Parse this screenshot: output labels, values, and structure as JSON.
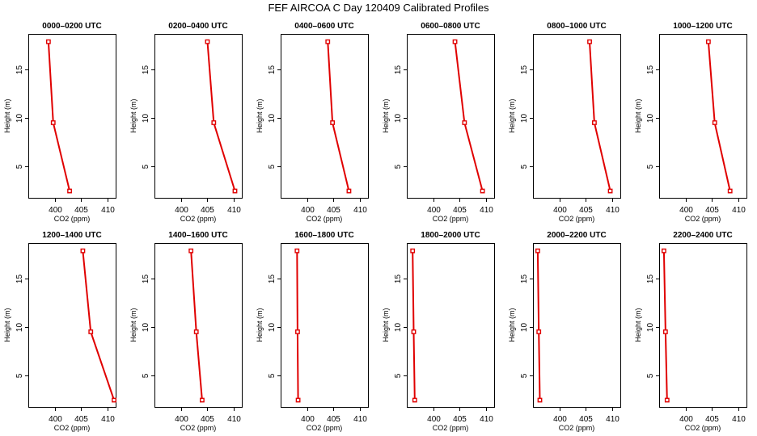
{
  "figure": {
    "title": "FEF AIRCOA C  Day 120409  Calibrated Profiles"
  },
  "chart_data": [
    {
      "type": "line",
      "title": "0000–0200 UTC",
      "xlabel": "CO2 (ppm)",
      "ylabel": "Height (m)",
      "xlim": [
        395,
        411.5
      ],
      "ylim": [
        1.8,
        18.6
      ],
      "xticks": [
        400,
        405,
        410
      ],
      "yticks": [
        5,
        10,
        15
      ],
      "x": [
        398.8,
        399.7,
        402.8
      ],
      "y": [
        17.8,
        9.5,
        2.5
      ]
    },
    {
      "type": "line",
      "title": "0200–0400 UTC",
      "xlabel": "CO2 (ppm)",
      "ylabel": "Height (m)",
      "xlim": [
        395,
        411.5
      ],
      "ylim": [
        1.8,
        18.6
      ],
      "xticks": [
        400,
        405,
        410
      ],
      "yticks": [
        5,
        10,
        15
      ],
      "x": [
        405.0,
        406.2,
        410.2
      ],
      "y": [
        17.8,
        9.5,
        2.5
      ]
    },
    {
      "type": "line",
      "title": "0400–0600 UTC",
      "xlabel": "CO2 (ppm)",
      "ylabel": "Height (m)",
      "xlim": [
        395,
        411.5
      ],
      "ylim": [
        1.8,
        18.6
      ],
      "xticks": [
        400,
        405,
        410
      ],
      "yticks": [
        5,
        10,
        15
      ],
      "x": [
        403.9,
        404.8,
        407.9
      ],
      "y": [
        17.8,
        9.5,
        2.5
      ]
    },
    {
      "type": "line",
      "title": "0600–0800 UTC",
      "xlabel": "CO2 (ppm)",
      "ylabel": "Height (m)",
      "xlim": [
        395,
        411.5
      ],
      "ylim": [
        1.8,
        18.6
      ],
      "xticks": [
        400,
        405,
        410
      ],
      "yticks": [
        5,
        10,
        15
      ],
      "x": [
        404.1,
        405.9,
        409.3
      ],
      "y": [
        17.8,
        9.5,
        2.5
      ]
    },
    {
      "type": "line",
      "title": "0800–1000 UTC",
      "xlabel": "CO2 (ppm)",
      "ylabel": "Height (m)",
      "xlim": [
        395,
        411.5
      ],
      "ylim": [
        1.8,
        18.6
      ],
      "xticks": [
        400,
        405,
        410
      ],
      "yticks": [
        5,
        10,
        15
      ],
      "x": [
        405.7,
        406.6,
        409.6
      ],
      "y": [
        17.8,
        9.5,
        2.5
      ]
    },
    {
      "type": "line",
      "title": "1000–1200 UTC",
      "xlabel": "CO2 (ppm)",
      "ylabel": "Height (m)",
      "xlim": [
        395,
        411.5
      ],
      "ylim": [
        1.8,
        18.6
      ],
      "xticks": [
        400,
        405,
        410
      ],
      "yticks": [
        5,
        10,
        15
      ],
      "x": [
        404.3,
        405.5,
        408.4
      ],
      "y": [
        17.8,
        9.5,
        2.5
      ]
    },
    {
      "type": "line",
      "title": "1200–1400 UTC",
      "xlabel": "CO2 (ppm)",
      "ylabel": "Height (m)",
      "xlim": [
        395,
        411.5
      ],
      "ylim": [
        1.8,
        18.6
      ],
      "xticks": [
        400,
        405,
        410
      ],
      "yticks": [
        5,
        10,
        15
      ],
      "x": [
        405.3,
        406.8,
        411.2
      ],
      "y": [
        17.8,
        9.5,
        2.5
      ]
    },
    {
      "type": "line",
      "title": "1400–1600 UTC",
      "xlabel": "CO2 (ppm)",
      "ylabel": "Height (m)",
      "xlim": [
        395,
        411.5
      ],
      "ylim": [
        1.8,
        18.6
      ],
      "xticks": [
        400,
        405,
        410
      ],
      "yticks": [
        5,
        10,
        15
      ],
      "x": [
        401.9,
        402.9,
        404.0
      ],
      "y": [
        17.8,
        9.5,
        2.5
      ]
    },
    {
      "type": "line",
      "title": "1600–1800 UTC",
      "xlabel": "CO2 (ppm)",
      "ylabel": "Height (m)",
      "xlim": [
        395,
        411.5
      ],
      "ylim": [
        1.8,
        18.6
      ],
      "xticks": [
        400,
        405,
        410
      ],
      "yticks": [
        5,
        10,
        15
      ],
      "x": [
        398.1,
        398.2,
        398.3
      ],
      "y": [
        17.8,
        9.5,
        2.5
      ]
    },
    {
      "type": "line",
      "title": "1800–2000 UTC",
      "xlabel": "CO2 (ppm)",
      "ylabel": "Height (m)",
      "xlim": [
        395,
        411.5
      ],
      "ylim": [
        1.8,
        18.6
      ],
      "xticks": [
        400,
        405,
        410
      ],
      "yticks": [
        5,
        10,
        15
      ],
      "x": [
        396.1,
        396.3,
        396.5
      ],
      "y": [
        17.8,
        9.5,
        2.5
      ]
    },
    {
      "type": "line",
      "title": "2000–2200 UTC",
      "xlabel": "CO2 (ppm)",
      "ylabel": "Height (m)",
      "xlim": [
        395,
        411.5
      ],
      "ylim": [
        1.8,
        18.6
      ],
      "xticks": [
        400,
        405,
        410
      ],
      "yticks": [
        5,
        10,
        15
      ],
      "x": [
        395.9,
        396.1,
        396.3
      ],
      "y": [
        17.8,
        9.5,
        2.5
      ]
    },
    {
      "type": "line",
      "title": "2200–2400 UTC",
      "xlabel": "CO2 (ppm)",
      "ylabel": "Height (m)",
      "xlim": [
        395,
        411.5
      ],
      "ylim": [
        1.8,
        18.6
      ],
      "xticks": [
        400,
        405,
        410
      ],
      "yticks": [
        5,
        10,
        15
      ],
      "x": [
        395.9,
        396.2,
        396.5
      ],
      "y": [
        17.8,
        9.5,
        2.5
      ]
    }
  ],
  "colors": {
    "series": "#e00000",
    "axes": "#000000",
    "background": "#ffffff"
  }
}
